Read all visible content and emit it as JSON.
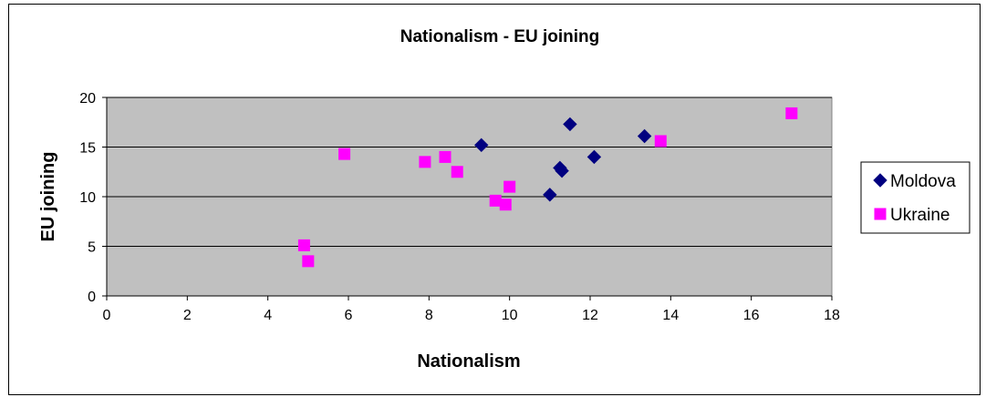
{
  "chart_data": {
    "type": "scatter",
    "title": "Nationalism - EU joining",
    "xlabel": "Nationalism",
    "ylabel": "EU joining",
    "xlim": [
      0,
      18
    ],
    "ylim": [
      0,
      20
    ],
    "xticks": [
      "0",
      "2",
      "4",
      "6",
      "8",
      "10",
      "12",
      "14",
      "16",
      "18"
    ],
    "yticks": [
      "0",
      "5",
      "10",
      "15",
      "20"
    ],
    "grid": "horizontal",
    "plot_background": "#c0c0c0",
    "legend_position": "right",
    "series": [
      {
        "name": "Moldova",
        "marker": "diamond",
        "color": "#000080",
        "points": [
          {
            "x": 9.3,
            "y": 15.2
          },
          {
            "x": 11.0,
            "y": 10.2
          },
          {
            "x": 11.25,
            "y": 12.9
          },
          {
            "x": 11.3,
            "y": 12.6
          },
          {
            "x": 11.5,
            "y": 17.3
          },
          {
            "x": 12.1,
            "y": 14.0
          },
          {
            "x": 13.35,
            "y": 16.1
          }
        ]
      },
      {
        "name": "Ukraine",
        "marker": "square",
        "color": "#ff00ff",
        "points": [
          {
            "x": 4.9,
            "y": 5.1
          },
          {
            "x": 5.0,
            "y": 3.5
          },
          {
            "x": 5.9,
            "y": 14.3
          },
          {
            "x": 7.9,
            "y": 13.5
          },
          {
            "x": 8.4,
            "y": 14.0
          },
          {
            "x": 8.7,
            "y": 12.5
          },
          {
            "x": 9.65,
            "y": 9.6
          },
          {
            "x": 9.9,
            "y": 9.2
          },
          {
            "x": 10.0,
            "y": 11.0
          },
          {
            "x": 13.75,
            "y": 15.6
          },
          {
            "x": 17.0,
            "y": 18.4
          }
        ]
      }
    ]
  }
}
